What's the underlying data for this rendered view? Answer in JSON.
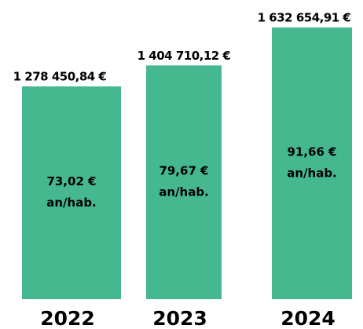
{
  "chart_data": {
    "type": "bar",
    "categories": [
      "2022",
      "2023",
      "2024"
    ],
    "values": [
      1278450.84,
      1404710.12,
      1632654.91
    ],
    "value_labels": [
      "1 278 450,84 €",
      "1 404 710,12 €",
      "1 632 654,91 €"
    ],
    "inner_labels": [
      "73,02 €",
      "79,67 €",
      "91,66 €"
    ],
    "inner_unit": "an/hab.",
    "color": "#45b88f"
  }
}
